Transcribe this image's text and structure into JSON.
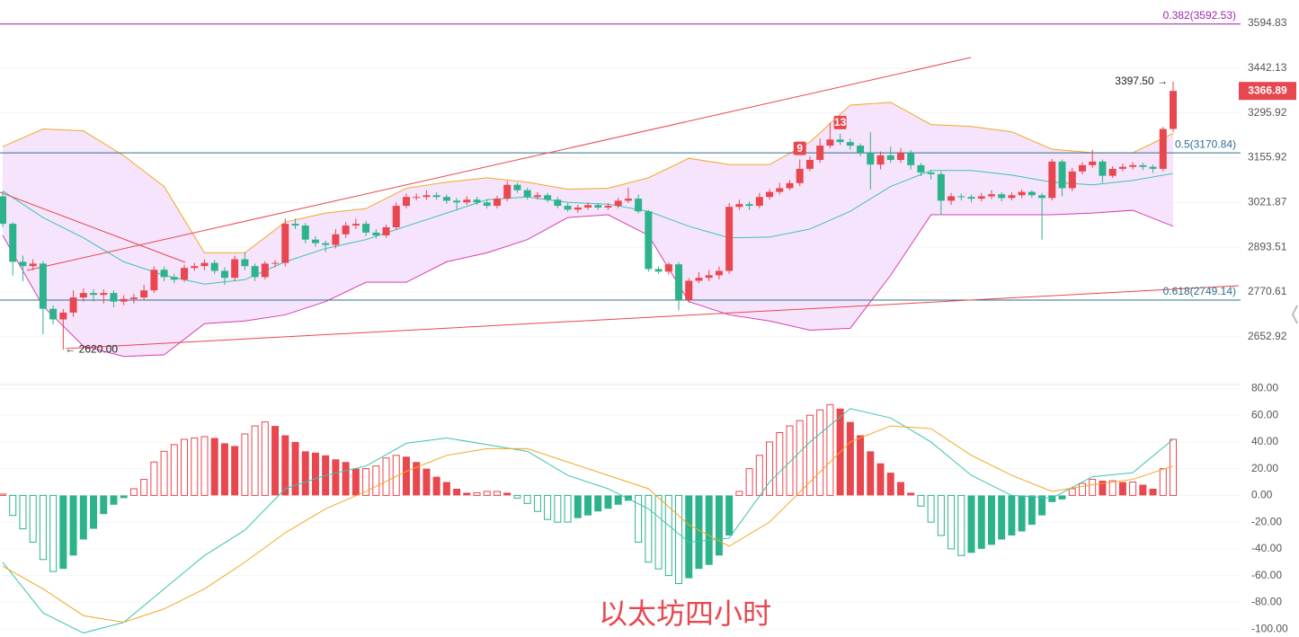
{
  "chart_data": [
    {
      "type": "candlestick",
      "title": "以太坊四小时",
      "log_scale": true,
      "grid": true,
      "up_color": "#e8474f",
      "down_color": "#2db38b",
      "ylim": [
        2533,
        3677
      ],
      "yticks": [
        2652.92,
        2770.61,
        2893.51,
        3021.87,
        3155.92,
        3295.92,
        3442.13,
        3594.83
      ],
      "open": [
        3040,
        2960,
        2853,
        2841,
        2848,
        2726,
        2698,
        2716,
        2756,
        2768,
        2763,
        2768,
        2745,
        2752,
        2756,
        2775,
        2831,
        2811,
        2804,
        2836,
        2841,
        2850,
        2828,
        2809,
        2860,
        2841,
        2811,
        2848,
        2850,
        2960,
        2955,
        2915,
        2905,
        2900,
        2930,
        2955,
        2960,
        2935,
        2927,
        2950,
        3012,
        3038,
        3038,
        3043,
        3038,
        3027,
        3022,
        3030,
        3022,
        3012,
        3033,
        3074,
        3058,
        3038,
        3043,
        3030,
        3012,
        3001,
        3007,
        3014,
        3007,
        3012,
        3027,
        3033,
        2996,
        2833,
        2826,
        2846,
        2749,
        2801,
        2809,
        2816,
        2828,
        3009,
        3017,
        3012,
        3038,
        3053,
        3064,
        3079,
        3122,
        3149,
        3193,
        3212,
        3204,
        3193,
        3171,
        3135,
        3163,
        3149,
        3171,
        3133,
        3111,
        3106,
        3027,
        3040,
        3038,
        3033,
        3040,
        3046,
        3035,
        3043,
        3053,
        3043,
        3035,
        3144,
        3064,
        3114,
        3133,
        3144,
        3101,
        3122,
        3128,
        3133,
        3128,
        3122,
        3245
      ],
      "high": [
        3055,
        2965,
        2870,
        2860,
        2855,
        2735,
        2725,
        2775,
        2780,
        2778,
        2778,
        2775,
        2762,
        2766,
        2790,
        2840,
        2840,
        2820,
        2845,
        2850,
        2860,
        2858,
        2838,
        2870,
        2880,
        2848,
        2855,
        2858,
        2975,
        2975,
        2962,
        2925,
        2912,
        2945,
        2965,
        2975,
        2968,
        2945,
        2958,
        3022,
        3048,
        3048,
        3058,
        3052,
        3045,
        3035,
        3040,
        3038,
        3030,
        3042,
        3085,
        3080,
        3065,
        3052,
        3050,
        3038,
        3020,
        3015,
        3022,
        3020,
        3020,
        3035,
        3065,
        3045,
        3000,
        2840,
        2852,
        2852,
        2808,
        2825,
        2830,
        2840,
        3020,
        3030,
        3025,
        3050,
        3062,
        3080,
        3088,
        3150,
        3160,
        3215,
        3265,
        3230,
        3215,
        3200,
        3235,
        3175,
        3190,
        3185,
        3180,
        3140,
        3118,
        3115,
        3050,
        3048,
        3045,
        3050,
        3058,
        3052,
        3052,
        3060,
        3058,
        3050,
        3152,
        3150,
        3125,
        3142,
        3180,
        3150,
        3130,
        3138,
        3142,
        3140,
        3135,
        3252,
        3397.5
      ],
      "low": [
        2950,
        2815,
        2800,
        2830,
        2660,
        2685,
        2620,
        2705,
        2745,
        2745,
        2740,
        2730,
        2735,
        2740,
        2748,
        2768,
        2800,
        2795,
        2798,
        2828,
        2830,
        2820,
        2790,
        2800,
        2830,
        2800,
        2805,
        2838,
        2840,
        2945,
        2905,
        2895,
        2880,
        2890,
        2920,
        2945,
        2925,
        2918,
        2920,
        2942,
        3005,
        3028,
        3030,
        3030,
        3018,
        3000,
        3015,
        3015,
        3005,
        3005,
        3025,
        3050,
        3030,
        3030,
        3022,
        3005,
        2995,
        2992,
        3000,
        3000,
        3000,
        3005,
        3020,
        2990,
        2826,
        2820,
        2818,
        2722,
        2742,
        2795,
        2800,
        2805,
        2820,
        3000,
        3000,
        3005,
        3030,
        3045,
        3058,
        3070,
        3115,
        3140,
        3185,
        3195,
        3180,
        3160,
        3060,
        3120,
        3140,
        3140,
        3120,
        3100,
        3090,
        2985,
        3015,
        3028,
        3022,
        3025,
        3032,
        3025,
        3028,
        3035,
        3035,
        2915,
        3028,
        3040,
        3055,
        3105,
        3125,
        3080,
        3095,
        3115,
        3120,
        3118,
        3110,
        3115,
        3235
      ],
      "close": [
        2960,
        2853,
        2841,
        2848,
        2726,
        2698,
        2716,
        2756,
        2768,
        2763,
        2768,
        2745,
        2752,
        2756,
        2775,
        2831,
        2811,
        2804,
        2836,
        2841,
        2850,
        2828,
        2809,
        2860,
        2841,
        2811,
        2848,
        2850,
        2960,
        2955,
        2915,
        2905,
        2900,
        2930,
        2955,
        2960,
        2935,
        2927,
        2950,
        3012,
        3038,
        3038,
        3043,
        3038,
        3027,
        3022,
        3030,
        3022,
        3012,
        3033,
        3074,
        3058,
        3038,
        3043,
        3030,
        3012,
        3001,
        3007,
        3014,
        3007,
        3012,
        3027,
        3033,
        2996,
        2833,
        2826,
        2846,
        2749,
        2801,
        2809,
        2816,
        2828,
        3009,
        3017,
        3012,
        3038,
        3053,
        3064,
        3079,
        3122,
        3149,
        3193,
        3212,
        3204,
        3193,
        3171,
        3135,
        3163,
        3149,
        3171,
        3133,
        3111,
        3106,
        3027,
        3040,
        3038,
        3033,
        3040,
        3046,
        3035,
        3043,
        3053,
        3043,
        3035,
        3144,
        3064,
        3114,
        3133,
        3144,
        3101,
        3122,
        3128,
        3133,
        3128,
        3122,
        3245,
        3366.89
      ],
      "bands": {
        "x": [
          0,
          4,
          8,
          12,
          16,
          20,
          24,
          28,
          32,
          36,
          40,
          44,
          48,
          52,
          56,
          60,
          64,
          68,
          72,
          76,
          80,
          84,
          88,
          92,
          96,
          100,
          104,
          108,
          112,
          116
        ],
        "fill": "#f5e4fb",
        "upper": {
          "color": "#f5a623",
          "values": [
            3190,
            3245,
            3239,
            3162,
            3069,
            2878,
            2878,
            2965,
            2991,
            3004,
            3064,
            3082,
            3095,
            3082,
            3061,
            3064,
            3095,
            3154,
            3135,
            3135,
            3204,
            3321,
            3330,
            3259,
            3253,
            3236,
            3182,
            3171,
            3171,
            3231
          ]
        },
        "middle": {
          "color": "#3cc3b0",
          "values": [
            3056,
            2978,
            2920,
            2853,
            2816,
            2792,
            2804,
            2853,
            2890,
            2915,
            2953,
            2991,
            3030,
            3038,
            3022,
            3017,
            2996,
            2953,
            2920,
            2922,
            2945,
            2996,
            3069,
            3117,
            3117,
            3103,
            3082,
            3074,
            3087,
            3108
          ]
        },
        "lower": {
          "color": "#d63fb0",
          "values": [
            2927,
            2733,
            2629,
            2603,
            2607,
            2687,
            2694,
            2710,
            2745,
            2797,
            2797,
            2853,
            2878,
            2915,
            2978,
            2986,
            2927,
            2745,
            2710,
            2694,
            2670,
            2675,
            2816,
            2986,
            2986,
            2986,
            2986,
            2991,
            2999,
            2953
          ]
        }
      },
      "fib_levels": [
        {
          "value": 3592.53,
          "label": "0.382(3592.53)",
          "color": "#9c27b0"
        },
        {
          "value": 3170.84,
          "label": "0.5(3170.84)",
          "color": "#2e6f8e"
        },
        {
          "value": 2749.14,
          "label": "0.618(2749.14)",
          "color": "#2e6f8e"
        }
      ],
      "annotations": [
        {
          "value": 3397.5,
          "label": "3397.50 →"
        },
        {
          "value": 2620,
          "label": "← 2620.00"
        }
      ],
      "td_labels": [
        "9",
        "13"
      ]
    },
    {
      "type": "macd",
      "grid": true,
      "up_color": "#e8474f",
      "down_color": "#2db38b",
      "ylim": [
        -106,
        83
      ],
      "yticks": [
        {
          "value": -100,
          "label": "-100.00"
        },
        {
          "value": -80,
          "label": "-80.00"
        },
        {
          "value": -60,
          "label": "-60.00"
        },
        {
          "value": -40,
          "label": "-40.00"
        },
        {
          "value": -20,
          "label": "-20.00"
        },
        {
          "value": 0,
          "label": "0.00"
        },
        {
          "value": 20,
          "label": "20.00"
        },
        {
          "value": 40,
          "label": "40.00"
        },
        {
          "value": 60,
          "label": "60.00"
        },
        {
          "value": 80,
          "label": "80.00"
        }
      ],
      "histogram": [
        1,
        -15,
        -25,
        -35,
        -48,
        -57,
        -55,
        -45,
        -33,
        -25,
        -14,
        -7,
        -2,
        5,
        12,
        25,
        33,
        38,
        42,
        43,
        44,
        43,
        39,
        37,
        46,
        52,
        55,
        52,
        45,
        40,
        33,
        32,
        30,
        27,
        25,
        20,
        20,
        22,
        28,
        30,
        29,
        25,
        20,
        14,
        10,
        5,
        2,
        2,
        3,
        3,
        2,
        -2,
        -6,
        -12,
        -18,
        -20,
        -20,
        -17,
        -15,
        -12,
        -10,
        -7,
        -4,
        -35,
        -50,
        -55,
        -60,
        -66,
        -62,
        -55,
        -52,
        -45,
        -30,
        3,
        20,
        30,
        40,
        47,
        52,
        56,
        60,
        64,
        68,
        65,
        55,
        45,
        33,
        24,
        17,
        10,
        2,
        -8,
        -20,
        -30,
        -40,
        -45,
        -43,
        -40,
        -37,
        -33,
        -30,
        -27,
        -22,
        -15,
        -5,
        -3,
        5,
        9,
        12,
        11,
        11,
        10,
        10,
        8,
        5,
        20,
        42
      ],
      "x": [
        0,
        4,
        8,
        12,
        16,
        20,
        24,
        28,
        32,
        36,
        40,
        44,
        48,
        52,
        56,
        60,
        64,
        68,
        72,
        76,
        80,
        84,
        88,
        92,
        96,
        100,
        104,
        108,
        112,
        116
      ],
      "dif": {
        "color": "#3cc3b0",
        "values": [
          -50,
          -88,
          -103,
          -95,
          -70,
          -45,
          -26,
          5,
          15,
          22,
          39,
          43,
          38,
          33,
          15,
          5,
          -10,
          -35,
          -32,
          10,
          40,
          65,
          58,
          40,
          15,
          0,
          -2,
          14,
          17,
          42
        ]
      },
      "dea": {
        "color": "#f5a623",
        "values": [
          -53,
          -70,
          -90,
          -95,
          -85,
          -70,
          -50,
          -28,
          -10,
          3,
          18,
          30,
          35,
          35,
          25,
          15,
          5,
          -22,
          -38,
          -20,
          10,
          40,
          52,
          50,
          30,
          15,
          3,
          8,
          12,
          22
        ]
      }
    }
  ]
}
